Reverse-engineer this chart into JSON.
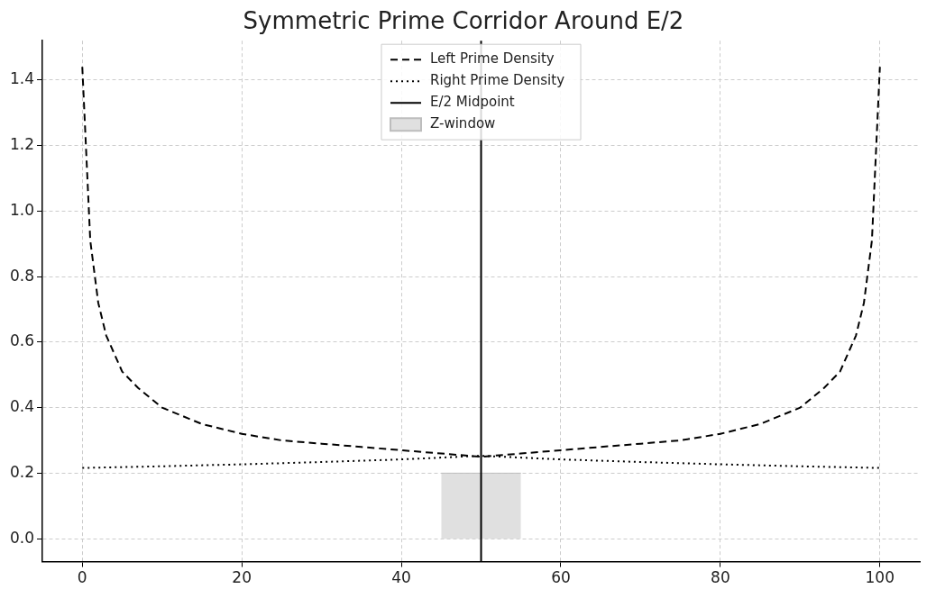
{
  "chart_data": {
    "type": "line",
    "title": "Symmetric Prime Corridor Around E/2",
    "xlim": [
      -5,
      105
    ],
    "xticks": [
      0,
      20,
      40,
      60,
      80,
      100
    ],
    "ylim": [
      -0.07,
      1.52
    ],
    "yticks": [
      {
        "value": 0,
        "label": "0.0"
      },
      {
        "value": 0.2,
        "label": "0.2"
      },
      {
        "value": 0.4,
        "label": "0.4"
      },
      {
        "value": 0.6,
        "label": "0.6"
      },
      {
        "value": 0.8,
        "label": "0.8"
      },
      {
        "value": 1.0,
        "label": "1.0"
      },
      {
        "value": 1.2,
        "label": "1.2"
      },
      {
        "value": 1.4,
        "label": "1.4"
      }
    ],
    "grid": true,
    "legend": "top",
    "marker": "none",
    "series": [
      {
        "name": "Left Prime Density",
        "color": "#000000",
        "line_style": "dashed",
        "x": [
          0,
          1,
          2,
          3,
          5,
          7,
          10,
          15,
          20,
          25,
          30,
          35,
          40,
          45,
          50,
          55,
          60,
          65,
          70,
          75,
          80,
          85,
          90,
          93,
          95,
          97,
          98,
          99,
          100
        ],
        "values": [
          1.44,
          0.91,
          0.72,
          0.62,
          0.51,
          0.46,
          0.4,
          0.35,
          0.32,
          0.3,
          0.29,
          0.28,
          0.27,
          0.26,
          0.25,
          0.26,
          0.27,
          0.28,
          0.29,
          0.3,
          0.32,
          0.35,
          0.4,
          0.46,
          0.51,
          0.62,
          0.72,
          0.91,
          1.44
        ]
      },
      {
        "name": "Right Prime Density",
        "color": "#000000",
        "line_style": "dotted",
        "x": [
          0,
          10,
          20,
          30,
          40,
          50,
          60,
          70,
          80,
          90,
          100
        ],
        "values": [
          0.216,
          0.221,
          0.227,
          0.234,
          0.242,
          0.253,
          0.242,
          0.234,
          0.227,
          0.221,
          0.216
        ]
      },
      {
        "name": "Z-window",
        "type": "area",
        "color": "#e0e0e0",
        "x": [
          45,
          55
        ],
        "values": [
          0.2,
          0.2
        ]
      }
    ],
    "ref_lines": [
      {
        "axis": "x",
        "value": 50,
        "label": "E/2 Midpoint",
        "color": "#000000",
        "line_style": "solid"
      }
    ]
  }
}
